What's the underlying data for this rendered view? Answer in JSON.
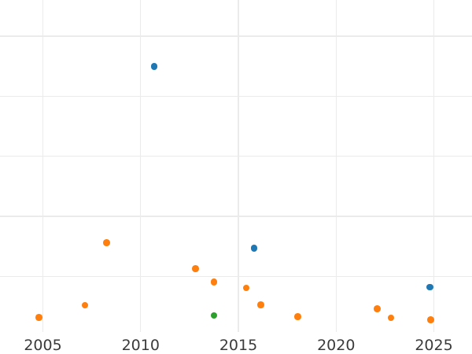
{
  "chart_data": {
    "type": "scatter",
    "title": "",
    "xlabel": "",
    "ylabel": "",
    "x_tick_labels": [
      "2005",
      "2010",
      "2015",
      "2020",
      "2025"
    ],
    "x_ticks": [
      2005,
      2010,
      2015,
      2020,
      2025
    ],
    "y_axis": {
      "tick_labels_visible": false,
      "note": "y tick labels are cropped off the left edge; y values below are in gridline units (one unit per horizontal gridline, 0 = bottom of visible grid)",
      "gridline_units": [
        1,
        2,
        3,
        4,
        5
      ]
    },
    "x_range_visible": [
      2002.8,
      2026.9
    ],
    "y_range_visible": [
      0.07,
      5.6
    ],
    "grid": true,
    "legend_position": "none",
    "colors": {
      "background": "#ffffff",
      "gridline": "#ebebeb",
      "tick_label": "#3b3b3b",
      "series_blue": "#1f77b4",
      "series_orange": "#ff7f0e",
      "series_green": "#2ca02c"
    },
    "series": [
      {
        "name": "blue",
        "color": "#1f77b4",
        "points": [
          {
            "x": 2010.7,
            "y": 4.5
          },
          {
            "x": 2015.8,
            "y": 1.47
          },
          {
            "x": 2024.8,
            "y": 0.82
          }
        ]
      },
      {
        "name": "orange",
        "color": "#ff7f0e",
        "points": [
          {
            "x": 2004.8,
            "y": 0.32
          },
          {
            "x": 2007.15,
            "y": 0.52
          },
          {
            "x": 2008.25,
            "y": 1.56
          },
          {
            "x": 2012.8,
            "y": 1.13
          },
          {
            "x": 2013.75,
            "y": 0.91
          },
          {
            "x": 2015.4,
            "y": 0.81
          },
          {
            "x": 2016.15,
            "y": 0.53
          },
          {
            "x": 2018.05,
            "y": 0.33
          },
          {
            "x": 2022.1,
            "y": 0.46
          },
          {
            "x": 2022.8,
            "y": 0.31
          },
          {
            "x": 2024.85,
            "y": 0.28
          }
        ]
      },
      {
        "name": "green",
        "color": "#2ca02c",
        "points": [
          {
            "x": 2013.75,
            "y": 0.35
          }
        ]
      }
    ]
  }
}
